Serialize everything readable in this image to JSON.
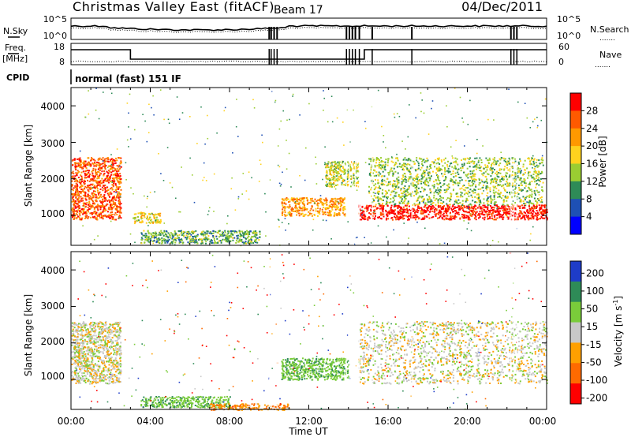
{
  "header": {
    "station": "Christmas Valley East (fitACF)",
    "beam": "Beam 17",
    "date": "04/Dec/2011"
  },
  "labels": {
    "nsky": "N.Sky",
    "nsearch": "N.Search",
    "freq": "Freq.",
    "freq_unit": "[MHz]",
    "nave": "Nave",
    "cpid": "CPID",
    "cpid_value": "normal (fast) 151 IF",
    "dots": "......."
  },
  "noise_panel": {
    "left_ticks": [
      "10^5",
      "10^0"
    ],
    "right_ticks": [
      "10^5",
      "10^0"
    ]
  },
  "freq_panel": {
    "left_ticks": [
      "18",
      "8"
    ],
    "right_ticks": [
      "60",
      "0"
    ]
  },
  "power_scale": {
    "label": "Power [dB]",
    "ticks": [
      "28",
      "24",
      "20",
      "16",
      "12",
      "8",
      "4"
    ],
    "colors": [
      "#ff0000",
      "#ff5a00",
      "#ff9900",
      "#ffd21e",
      "#9acd32",
      "#2e8b57",
      "#1e50b4",
      "#0000ff"
    ]
  },
  "velocity_scale": {
    "label": "Velocity [m s",
    "label_sup": "-1",
    "label_close": "]",
    "ticks": [
      "200",
      "100",
      "50",
      "15",
      "-15",
      "-50",
      "-100",
      "-200"
    ],
    "colors": [
      "#1e3cc8",
      "#2e8b57",
      "#7acc3a",
      "#c8c8c8",
      "#ffa000",
      "#ff6a00",
      "#ff0000"
    ]
  },
  "axes": {
    "ylabel": "Slant Range [km]",
    "yticks": [
      "4000",
      "3000",
      "2000",
      "1000"
    ],
    "xlabel": "Time UT",
    "xticks": [
      "00:00",
      "04:00",
      "08:00",
      "12:00",
      "16:00",
      "20:00",
      "00:00"
    ]
  },
  "chart_data": [
    {
      "type": "heatmap",
      "title": "Power",
      "ylabel": "Slant Range [km]",
      "xlabel": "Time UT",
      "x_range_hours": [
        0,
        24
      ],
      "y_range_km": [
        180,
        4500
      ],
      "colorbar": {
        "label": "Power [dB]",
        "ticks": [
          4,
          8,
          12,
          16,
          20,
          24,
          28
        ]
      },
      "echo_regions": [
        {
          "t_hours": [
            0.0,
            2.5
          ],
          "range_km": [
            900,
            2600
          ],
          "dominant_dB": 24
        },
        {
          "t_hours": [
            3.1,
            4.5
          ],
          "range_km": [
            800,
            1100
          ],
          "dominant_dB": 16
        },
        {
          "t_hours": [
            3.5,
            9.5
          ],
          "range_km": [
            250,
            600
          ],
          "dominant_dB": 10
        },
        {
          "t_hours": [
            10.6,
            13.8
          ],
          "range_km": [
            1000,
            1500
          ],
          "dominant_dB": 20
        },
        {
          "t_hours": [
            12.8,
            14.5
          ],
          "range_km": [
            1800,
            2500
          ],
          "dominant_dB": 14
        },
        {
          "t_hours": [
            14.5,
            24.0
          ],
          "range_km": [
            900,
            1300
          ],
          "dominant_dB": 28
        },
        {
          "t_hours": [
            15.0,
            23.8
          ],
          "range_km": [
            1300,
            2600
          ],
          "dominant_dB": 12
        }
      ]
    },
    {
      "type": "heatmap",
      "title": "Velocity",
      "ylabel": "Slant Range [km]",
      "xlabel": "Time UT",
      "x_range_hours": [
        0,
        24
      ],
      "y_range_km": [
        180,
        4500
      ],
      "colorbar": {
        "label": "Velocity [m s-1]",
        "ticks": [
          200,
          100,
          50,
          15,
          -15,
          -50,
          -100,
          -200
        ]
      },
      "echo_regions": [
        {
          "t_hours": [
            0.0,
            2.5
          ],
          "range_km": [
            900,
            2600
          ],
          "dominant_ms": 0
        },
        {
          "t_hours": [
            3.5,
            8.0
          ],
          "range_km": [
            250,
            550
          ],
          "dominant_ms": 60
        },
        {
          "t_hours": [
            7.0,
            11.0
          ],
          "range_km": [
            180,
            350
          ],
          "dominant_ms": -40
        },
        {
          "t_hours": [
            10.6,
            14.0
          ],
          "range_km": [
            1000,
            1600
          ],
          "dominant_ms": 60
        },
        {
          "t_hours": [
            14.5,
            24.0
          ],
          "range_km": [
            900,
            2600
          ],
          "dominant_ms": 0
        }
      ]
    }
  ]
}
